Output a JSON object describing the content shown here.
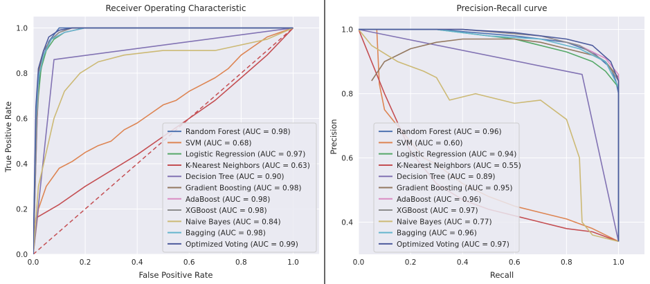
{
  "chart_data": [
    {
      "type": "line",
      "title": "Receiver Operating Characteristic",
      "xlabel": "False Positive Rate",
      "ylabel": "True Positive Rate",
      "xlim": [
        0,
        1.1
      ],
      "ylim": [
        0,
        1.05
      ],
      "xticks": [
        "0.0",
        "0.2",
        "0.4",
        "0.6",
        "0.8",
        "1.0"
      ],
      "yticks": [
        "0.0",
        "0.2",
        "0.4",
        "0.6",
        "0.8",
        "1.0"
      ],
      "grid": true,
      "legend_position": "lower-right",
      "reference_line": {
        "style": "dashed",
        "color": "#c44e52",
        "x": [
          0,
          1
        ],
        "y": [
          0,
          1
        ]
      },
      "series": [
        {
          "name": "Random Forest (AUC = 0.98)",
          "color": "#4c72b0",
          "x": [
            0,
            0.01,
            0.02,
            0.04,
            0.06,
            0.08,
            0.1,
            0.3,
            0.5,
            1.0
          ],
          "y": [
            0,
            0.55,
            0.75,
            0.88,
            0.94,
            0.97,
            1.0,
            1.0,
            1.0,
            1.0
          ]
        },
        {
          "name": "SVM (AUC = 0.68)",
          "color": "#dd8452",
          "x": [
            0,
            0.02,
            0.05,
            0.1,
            0.15,
            0.2,
            0.25,
            0.3,
            0.35,
            0.4,
            0.45,
            0.5,
            0.55,
            0.6,
            0.65,
            0.7,
            0.75,
            0.8,
            0.85,
            0.9,
            0.95,
            1.0
          ],
          "y": [
            0,
            0.2,
            0.3,
            0.38,
            0.41,
            0.45,
            0.48,
            0.5,
            0.55,
            0.58,
            0.62,
            0.66,
            0.68,
            0.72,
            0.75,
            0.78,
            0.82,
            0.88,
            0.92,
            0.96,
            0.98,
            1.0
          ]
        },
        {
          "name": "Logistic Regression (AUC = 0.97)",
          "color": "#55a868",
          "x": [
            0,
            0.01,
            0.02,
            0.03,
            0.05,
            0.08,
            0.12,
            0.2,
            1.0
          ],
          "y": [
            0,
            0.5,
            0.7,
            0.82,
            0.9,
            0.95,
            0.98,
            1.0,
            1.0
          ]
        },
        {
          "name": "K-Nearest Neighbors (AUC = 0.63)",
          "color": "#c44e52",
          "x": [
            0,
            0.01,
            0.1,
            0.2,
            0.3,
            0.4,
            0.5,
            0.6,
            0.7,
            0.8,
            0.9,
            1.0
          ],
          "y": [
            0,
            0.16,
            0.22,
            0.3,
            0.37,
            0.44,
            0.52,
            0.6,
            0.68,
            0.78,
            0.88,
            1.0
          ]
        },
        {
          "name": "Decision Tree (AUC = 0.90)",
          "color": "#8172b3",
          "x": [
            0,
            0.08,
            1.0
          ],
          "y": [
            0,
            0.86,
            1.0
          ]
        },
        {
          "name": "Gradient Boosting (AUC = 0.98)",
          "color": "#937860",
          "x": [
            0,
            0.02,
            0.04,
            0.07,
            0.1,
            0.15,
            1.0
          ],
          "y": [
            0,
            0.8,
            0.9,
            0.95,
            0.98,
            1.0,
            1.0
          ]
        },
        {
          "name": "AdaBoost (AUC = 0.98)",
          "color": "#da8bc3",
          "x": [
            0,
            0.02,
            0.04,
            0.07,
            0.12,
            0.2,
            1.0
          ],
          "y": [
            0,
            0.78,
            0.88,
            0.95,
            0.98,
            1.0,
            1.0
          ]
        },
        {
          "name": "XGBoost (AUC = 0.98)",
          "color": "#8c8c8c",
          "x": [
            0,
            0.02,
            0.04,
            0.07,
            0.1,
            0.15,
            1.0
          ],
          "y": [
            0,
            0.82,
            0.9,
            0.95,
            0.98,
            1.0,
            1.0
          ]
        },
        {
          "name": "Naive Bayes (AUC = 0.84)",
          "color": "#ccb974",
          "x": [
            0,
            0.02,
            0.05,
            0.08,
            0.12,
            0.18,
            0.25,
            0.35,
            0.5,
            0.7,
            0.9,
            1.0
          ],
          "y": [
            0,
            0.3,
            0.45,
            0.6,
            0.72,
            0.8,
            0.85,
            0.88,
            0.9,
            0.9,
            0.95,
            1.0
          ]
        },
        {
          "name": "Bagging (AUC = 0.98)",
          "color": "#64b5cd",
          "x": [
            0,
            0.01,
            0.02,
            0.04,
            0.07,
            0.12,
            0.2,
            1.0
          ],
          "y": [
            0,
            0.6,
            0.78,
            0.88,
            0.95,
            0.98,
            1.0,
            1.0
          ]
        },
        {
          "name": "Optimized Voting (AUC = 0.99)",
          "color": "#4c5a9c",
          "x": [
            0,
            0.01,
            0.02,
            0.04,
            0.06,
            0.1,
            0.15,
            1.0
          ],
          "y": [
            0,
            0.65,
            0.82,
            0.9,
            0.96,
            0.99,
            1.0,
            1.0
          ]
        }
      ]
    },
    {
      "type": "line",
      "title": "Precision-Recall curve",
      "xlabel": "Recall",
      "ylabel": "Precision",
      "xlim": [
        0,
        1.1
      ],
      "ylim": [
        0.3,
        1.04
      ],
      "xticks": [
        "0.0",
        "0.2",
        "0.4",
        "0.6",
        "0.8",
        "1.0"
      ],
      "yticks": [
        "0.4",
        "0.6",
        "0.8",
        "1.0"
      ],
      "grid": true,
      "legend_position": "lower-left",
      "series": [
        {
          "name": "Random Forest (AUC = 0.96)",
          "color": "#4c72b0",
          "x": [
            0,
            0.3,
            0.6,
            0.8,
            0.9,
            0.97,
            0.99,
            1.0,
            1.0
          ],
          "y": [
            1.0,
            1.0,
            0.98,
            0.96,
            0.93,
            0.88,
            0.84,
            0.8,
            0.34
          ]
        },
        {
          "name": "SVM (AUC = 0.60)",
          "color": "#dd8452",
          "x": [
            0,
            0.07,
            0.08,
            0.1,
            0.15,
            0.2,
            0.25,
            0.3,
            0.4,
            0.5,
            0.6,
            0.7,
            0.8,
            0.9,
            1.0
          ],
          "y": [
            1.0,
            1.0,
            0.83,
            0.75,
            0.7,
            0.65,
            0.6,
            0.58,
            0.52,
            0.48,
            0.45,
            0.43,
            0.41,
            0.38,
            0.34
          ]
        },
        {
          "name": "Logistic Regression (AUC = 0.94)",
          "color": "#55a868",
          "x": [
            0,
            0.3,
            0.6,
            0.8,
            0.9,
            0.95,
            1.0,
            1.0
          ],
          "y": [
            1.0,
            1.0,
            0.97,
            0.93,
            0.9,
            0.87,
            0.82,
            0.34
          ]
        },
        {
          "name": "K-Nearest Neighbors (AUC = 0.55)",
          "color": "#c44e52",
          "x": [
            0,
            0.1,
            0.2,
            0.3,
            0.4,
            0.5,
            0.6,
            0.7,
            0.8,
            0.9,
            1.0
          ],
          "y": [
            1.0,
            0.8,
            0.62,
            0.52,
            0.47,
            0.44,
            0.42,
            0.4,
            0.38,
            0.37,
            0.34
          ]
        },
        {
          "name": "Decision Tree (AUC = 0.89)",
          "color": "#8172b3",
          "x": [
            0,
            0.86,
            1.0
          ],
          "y": [
            1.0,
            0.86,
            0.34
          ]
        },
        {
          "name": "Gradient Boosting (AUC = 0.95)",
          "color": "#937860",
          "x": [
            0.05,
            0.1,
            0.2,
            0.3,
            0.4,
            0.5,
            0.6,
            0.7,
            0.8,
            0.9,
            0.95,
            1.0,
            1.0
          ],
          "y": [
            0.84,
            0.9,
            0.94,
            0.96,
            0.97,
            0.97,
            0.97,
            0.96,
            0.94,
            0.92,
            0.9,
            0.85,
            0.34
          ]
        },
        {
          "name": "AdaBoost (AUC = 0.96)",
          "color": "#da8bc3",
          "x": [
            0,
            0.4,
            0.7,
            0.85,
            0.95,
            1.0,
            1.0
          ],
          "y": [
            1.0,
            1.0,
            0.98,
            0.95,
            0.91,
            0.86,
            0.34
          ]
        },
        {
          "name": "XGBoost (AUC = 0.97)",
          "color": "#8c8c8c",
          "x": [
            0,
            0.4,
            0.7,
            0.85,
            0.95,
            1.0,
            1.0
          ],
          "y": [
            1.0,
            1.0,
            0.98,
            0.95,
            0.9,
            0.84,
            0.34
          ]
        },
        {
          "name": "Naive Bayes (AUC = 0.77)",
          "color": "#ccb974",
          "x": [
            0,
            0.05,
            0.15,
            0.25,
            0.3,
            0.35,
            0.45,
            0.6,
            0.7,
            0.8,
            0.85,
            0.86,
            0.9,
            1.0
          ],
          "y": [
            1.0,
            0.95,
            0.9,
            0.87,
            0.85,
            0.78,
            0.8,
            0.77,
            0.78,
            0.72,
            0.6,
            0.4,
            0.36,
            0.34
          ]
        },
        {
          "name": "Bagging (AUC = 0.96)",
          "color": "#64b5cd",
          "x": [
            0,
            0.3,
            0.5,
            0.7,
            0.85,
            0.95,
            1.0,
            1.0
          ],
          "y": [
            1.0,
            1.0,
            0.98,
            0.97,
            0.94,
            0.9,
            0.82,
            0.34
          ]
        },
        {
          "name": "Optimized Voting (AUC = 0.97)",
          "color": "#4c5a9c",
          "x": [
            0,
            0.4,
            0.6,
            0.8,
            0.9,
            0.97,
            1.0,
            1.0
          ],
          "y": [
            1.0,
            1.0,
            0.99,
            0.97,
            0.95,
            0.9,
            0.84,
            0.34
          ]
        }
      ]
    }
  ]
}
